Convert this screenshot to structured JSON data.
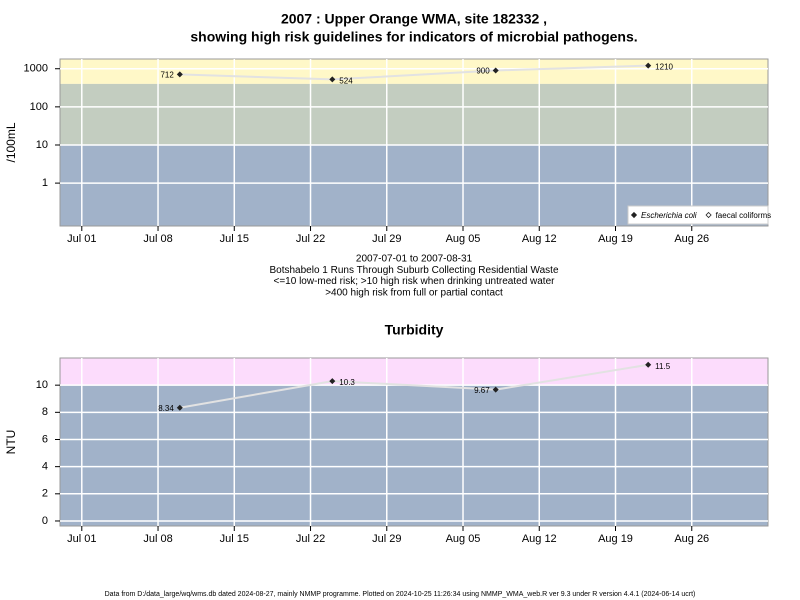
{
  "chart_data": [
    {
      "type": "line",
      "title": "2007 : Upper Orange WMA, site 182332 ,",
      "subtitle": "showing high risk guidelines for indicators of microbial pathogens.",
      "ylabel": "/100mL",
      "log_y": true,
      "x": [
        "2007-07-10",
        "2007-07-24",
        "2007-08-08",
        "2007-08-22"
      ],
      "series": [
        {
          "name": "Escherichia coli",
          "color": "#222222",
          "values": [
            712,
            524,
            900,
            1210
          ]
        },
        {
          "name": "faecal coliforms",
          "color": "#222222",
          "values": [
            null,
            null,
            null,
            null
          ]
        }
      ],
      "xlim": [
        "2007-06-29",
        "2007-09-02"
      ],
      "xticks": [
        {
          "value": "2007-07-01",
          "label": "Jul 01"
        },
        {
          "value": "2007-07-08",
          "label": "Jul 08"
        },
        {
          "value": "2007-07-15",
          "label": "Jul 15"
        },
        {
          "value": "2007-07-22",
          "label": "Jul 22"
        },
        {
          "value": "2007-07-29",
          "label": "Jul 29"
        },
        {
          "value": "2007-08-05",
          "label": "Aug 05"
        },
        {
          "value": "2007-08-12",
          "label": "Aug 12"
        },
        {
          "value": "2007-08-19",
          "label": "Aug 19"
        },
        {
          "value": "2007-08-26",
          "label": "Aug 26"
        }
      ],
      "ylim": [
        0.075,
        1800
      ],
      "yticks": [
        1,
        10,
        100,
        1000
      ],
      "grid": true,
      "bands": [
        {
          "from": 400,
          "to": 1800,
          "color": "#fff8c8"
        },
        {
          "from": 10,
          "to": 400,
          "color": "#c3cdc0"
        },
        {
          "from": 0.075,
          "to": 10,
          "color": "#a1b2c9"
        }
      ],
      "legend": "bottom-right",
      "notes": [
        "2007-07-01 to 2007-08-31",
        "Botshabelo 1 Runs Through Suburb Collecting Residential Waste",
        "<=10 low-med risk; >10 high risk when drinking untreated water",
        ">400 high risk from full or partial contact"
      ]
    },
    {
      "type": "line",
      "title": "Turbidity",
      "ylabel": "NTU",
      "log_y": false,
      "x": [
        "2007-07-10",
        "2007-07-24",
        "2007-08-08",
        "2007-08-22"
      ],
      "series": [
        {
          "name": "Turbidity",
          "color": "#222222",
          "values": [
            8.34,
            10.3,
            9.67,
            11.5
          ]
        }
      ],
      "xlim": [
        "2007-06-29",
        "2007-09-02"
      ],
      "xticks": [
        {
          "value": "2007-07-01",
          "label": "Jul 01"
        },
        {
          "value": "2007-07-08",
          "label": "Jul 08"
        },
        {
          "value": "2007-07-15",
          "label": "Jul 15"
        },
        {
          "value": "2007-07-22",
          "label": "Jul 22"
        },
        {
          "value": "2007-07-29",
          "label": "Jul 29"
        },
        {
          "value": "2007-08-05",
          "label": "Aug 05"
        },
        {
          "value": "2007-08-12",
          "label": "Aug 12"
        },
        {
          "value": "2007-08-19",
          "label": "Aug 19"
        },
        {
          "value": "2007-08-26",
          "label": "Aug 26"
        }
      ],
      "ylim": [
        -0.37,
        12
      ],
      "yticks": [
        0,
        2,
        4,
        6,
        8,
        10
      ],
      "grid": true,
      "bands": [
        {
          "from": 10,
          "to": 12,
          "color": "#fcdcfc"
        },
        {
          "from": -0.37,
          "to": 10,
          "color": "#a1b2c9"
        }
      ]
    }
  ],
  "footer": "Data from D:/data_large/wq/wms.db dated 2024-08-27, mainly NMMP programme. Plotted on 2024-10-25 11:26:34 using NMMP_WMA_web.R ver 9.3 under R version 4.4.1 (2024-06-14 ucrt)"
}
